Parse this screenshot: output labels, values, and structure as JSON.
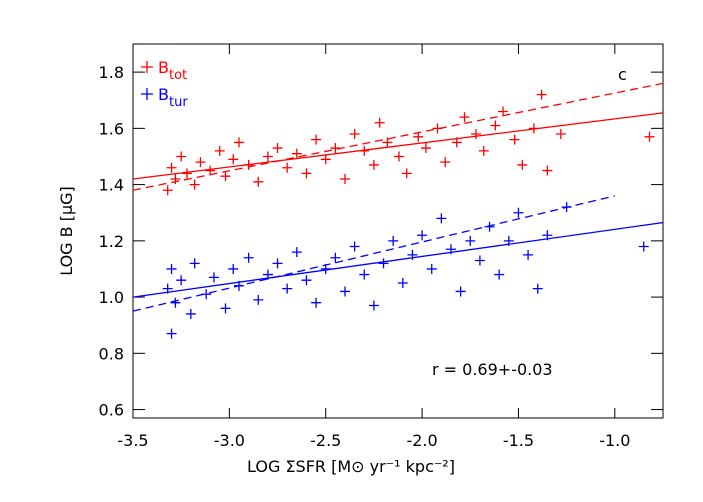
{
  "chart_data": {
    "type": "scatter",
    "xlabel": "LOG ΣSFR [M⊙ yr⁻¹ kpc⁻²]",
    "ylabel": "LOG B [μG]",
    "annotations": [
      "c",
      "r = 0.69+-0.03"
    ],
    "xlim": [
      -3.5,
      -0.75
    ],
    "ylim": [
      0.57,
      1.9
    ],
    "xticks": [
      -3.5,
      {
        "value": -3.0,
        "label": "-3.0"
      },
      -2.5,
      {
        "value": -2.0,
        "label": "-2.0"
      },
      -1.5,
      {
        "value": -1.0,
        "label": "-1.0"
      }
    ],
    "yticks": [
      0.6,
      0.8,
      {
        "value": 1.0,
        "label": "1.0"
      },
      1.2,
      1.4,
      1.6,
      1.8
    ],
    "series": [
      {
        "name": "B",
        "subscript": "tot",
        "color": "#ff0000",
        "x": [
          -3.32,
          -3.3,
          -3.28,
          -3.25,
          -3.22,
          -3.18,
          -3.15,
          -3.1,
          -3.05,
          -3.02,
          -2.98,
          -2.95,
          -2.9,
          -2.85,
          -2.8,
          -2.75,
          -2.7,
          -2.65,
          -2.6,
          -2.55,
          -2.5,
          -2.45,
          -2.4,
          -2.35,
          -2.3,
          -2.25,
          -2.22,
          -2.18,
          -2.12,
          -2.08,
          -2.02,
          -1.98,
          -1.92,
          -1.88,
          -1.82,
          -1.78,
          -1.72,
          -1.68,
          -1.62,
          -1.58,
          -1.52,
          -1.48,
          -1.42,
          -1.38,
          -1.35,
          -1.28,
          -0.82
        ],
        "values": [
          1.38,
          1.46,
          1.42,
          1.5,
          1.44,
          1.4,
          1.48,
          1.45,
          1.52,
          1.43,
          1.49,
          1.55,
          1.47,
          1.41,
          1.5,
          1.53,
          1.46,
          1.51,
          1.44,
          1.56,
          1.49,
          1.53,
          1.42,
          1.58,
          1.52,
          1.47,
          1.62,
          1.55,
          1.5,
          1.44,
          1.57,
          1.53,
          1.6,
          1.48,
          1.55,
          1.64,
          1.58,
          1.52,
          1.61,
          1.66,
          1.56,
          1.47,
          1.6,
          1.72,
          1.45,
          1.58,
          1.57
        ]
      },
      {
        "name": "B",
        "subscript": "tur",
        "color": "#0000ff",
        "x": [
          -3.32,
          -3.3,
          -3.28,
          -3.25,
          -3.2,
          -3.18,
          -3.12,
          -3.08,
          -3.02,
          -2.98,
          -2.95,
          -2.9,
          -2.85,
          -2.8,
          -2.75,
          -2.7,
          -2.65,
          -2.6,
          -2.55,
          -2.5,
          -2.45,
          -2.4,
          -2.35,
          -2.3,
          -2.25,
          -2.2,
          -2.15,
          -2.1,
          -2.05,
          -2.0,
          -1.95,
          -1.9,
          -1.85,
          -1.8,
          -1.75,
          -1.7,
          -1.65,
          -1.6,
          -1.55,
          -1.5,
          -1.45,
          -1.4,
          -1.35,
          -1.25,
          -3.3,
          -0.85
        ],
        "values": [
          1.03,
          1.1,
          0.98,
          1.06,
          0.94,
          1.12,
          1.01,
          1.07,
          0.96,
          1.1,
          1.04,
          1.14,
          0.99,
          1.08,
          1.12,
          1.03,
          1.16,
          1.06,
          0.98,
          1.1,
          1.14,
          1.02,
          1.18,
          1.08,
          0.97,
          1.12,
          1.2,
          1.05,
          1.15,
          1.22,
          1.1,
          1.28,
          1.17,
          1.02,
          1.2,
          1.13,
          1.25,
          1.08,
          1.2,
          1.3,
          1.15,
          1.03,
          1.22,
          1.32,
          0.87,
          1.18
        ]
      }
    ],
    "fits": [
      {
        "color": "#ff0000",
        "dashed": false,
        "x": [
          -3.5,
          -0.75
        ],
        "values": [
          1.42,
          1.655
        ]
      },
      {
        "color": "#ff0000",
        "dashed": true,
        "x": [
          -3.5,
          -0.75
        ],
        "values": [
          1.38,
          1.76
        ]
      },
      {
        "color": "#0000ff",
        "dashed": false,
        "x": [
          -3.5,
          -0.75
        ],
        "values": [
          1.0,
          1.265
        ]
      },
      {
        "color": "#0000ff",
        "dashed": true,
        "x": [
          -3.5,
          -1.0
        ],
        "values": [
          0.95,
          1.36
        ]
      }
    ]
  }
}
